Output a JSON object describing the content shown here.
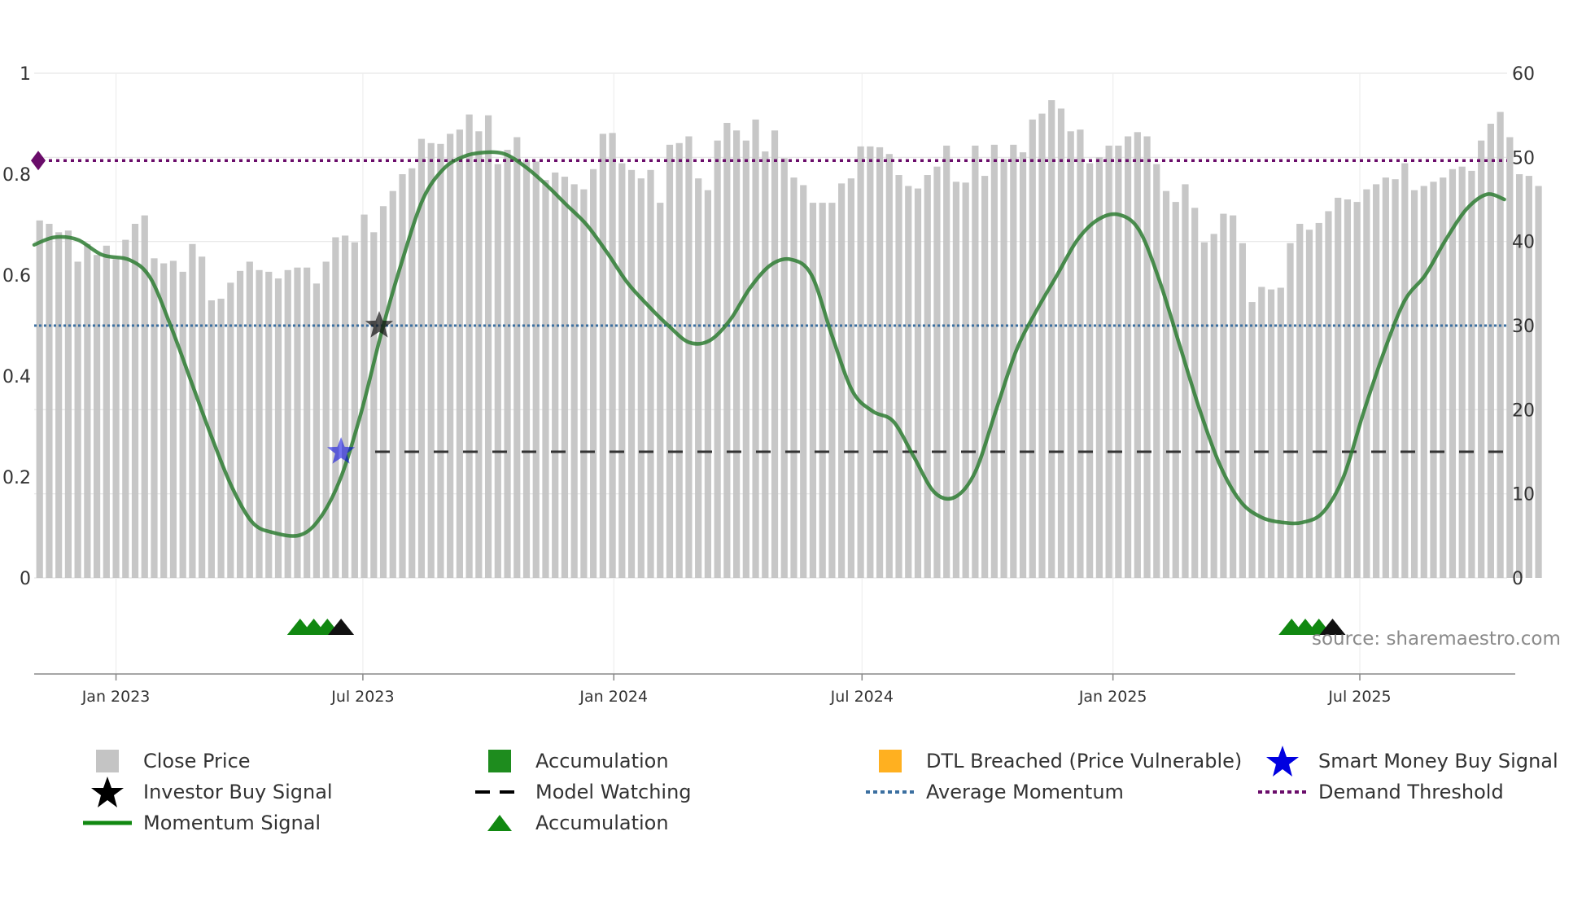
{
  "chart_data": {
    "type": "bar",
    "title": "",
    "source_note": "source: sharemaestro.com",
    "left_axis": {
      "ylim": [
        0,
        1
      ],
      "ticks": [
        "0",
        "0.2",
        "0.4",
        "0.6",
        "0.8",
        "1"
      ]
    },
    "right_axis": {
      "ylim": [
        0,
        60
      ],
      "ticks": [
        "0",
        "10",
        "20",
        "30",
        "40",
        "50",
        "60"
      ]
    },
    "x_axis": {
      "range_days": [
        -60,
        1020
      ],
      "ticks": [
        {
          "day": 0,
          "label": "Jan 2023"
        },
        {
          "day": 181,
          "label": "Jul 2023"
        },
        {
          "day": 365,
          "label": "Jan 2024"
        },
        {
          "day": 547,
          "label": "Jul 2024"
        },
        {
          "day": 731,
          "label": "Jan 2025"
        },
        {
          "day": 912,
          "label": "Jul 2025"
        }
      ]
    },
    "close_price": {
      "start_day": -56,
      "step_days": 7,
      "values": [
        42.5,
        42.1,
        41.1,
        41.3,
        37.6,
        39.7,
        38.4,
        39.5,
        37.9,
        40.2,
        42.1,
        43.1,
        38.0,
        37.4,
        37.7,
        36.4,
        39.7,
        38.2,
        33.0,
        33.2,
        35.1,
        36.5,
        37.6,
        36.6,
        36.4,
        35.6,
        36.6,
        36.9,
        36.9,
        35.0,
        37.6,
        40.5,
        40.7,
        39.9,
        43.2,
        41.1,
        44.2,
        46.0,
        48.0,
        48.7,
        52.2,
        51.7,
        51.6,
        52.8,
        53.3,
        55.1,
        53.1,
        55.0,
        49.2,
        50.9,
        52.4,
        49.7,
        49.5,
        47.3,
        48.2,
        47.7,
        46.8,
        46.2,
        48.6,
        52.8,
        52.9,
        49.3,
        48.5,
        47.5,
        48.5,
        44.6,
        51.5,
        51.7,
        52.5,
        47.5,
        46.1,
        52.0,
        54.1,
        53.2,
        52.0,
        54.5,
        50.7,
        53.2,
        49.9,
        47.6,
        46.7,
        44.6,
        44.6,
        44.6,
        46.9,
        47.5,
        51.3,
        51.3,
        51.2,
        50.4,
        47.9,
        46.6,
        46.3,
        47.9,
        48.9,
        51.4,
        47.1,
        47.0,
        51.4,
        47.8,
        51.5,
        49.8,
        51.5,
        50.6,
        54.5,
        55.2,
        56.8,
        55.8,
        53.1,
        53.3,
        49.3,
        50.0,
        51.4,
        51.4,
        52.5,
        53.0,
        52.5,
        49.2,
        46.0,
        44.7,
        46.8,
        44.0,
        39.9,
        40.9,
        43.3,
        43.1,
        39.8,
        32.8,
        34.6,
        34.3,
        34.5,
        39.8,
        42.1,
        41.4,
        42.2,
        43.6,
        45.2,
        45.0,
        44.7,
        46.2,
        46.8,
        47.6,
        47.4,
        49.3,
        46.1,
        46.6,
        47.1,
        47.6,
        48.6,
        48.9,
        48.4,
        52.0,
        54.0,
        55.4,
        52.4,
        48.0,
        47.8,
        46.6
      ],
      "category_codes": "GGGGGGGGGGGGGGGGGGGGGGGGGGGGGGGGGGGGGGGGGGGGGGGGGGGGGGGGGGGGGGGGGGGGGGGGGGGGGGGGGGGGGGGGGGGGGGGGGGGGGGGGGGGGGGGGGGGGGGGGGGGGGGGGGGGGGGGGGGGGGGGGGGGGGGGGGGGGGGGGGGGGGG",
      "categories_legend": {
        "G": "Close Price",
        "A": "Accumulation",
        "D": "DTL Breached (Price Vulnerable)"
      }
    },
    "momentum_signal": {
      "axis": "left",
      "points": [
        [
          -60,
          0.66
        ],
        [
          -45,
          0.675
        ],
        [
          -28,
          0.67
        ],
        [
          -10,
          0.64
        ],
        [
          10,
          0.63
        ],
        [
          25,
          0.595
        ],
        [
          40,
          0.5
        ],
        [
          55,
          0.39
        ],
        [
          70,
          0.28
        ],
        [
          85,
          0.18
        ],
        [
          100,
          0.11
        ],
        [
          115,
          0.09
        ],
        [
          135,
          0.085
        ],
        [
          150,
          0.12
        ],
        [
          165,
          0.2
        ],
        [
          180,
          0.33
        ],
        [
          195,
          0.49
        ],
        [
          210,
          0.63
        ],
        [
          225,
          0.75
        ],
        [
          240,
          0.81
        ],
        [
          255,
          0.835
        ],
        [
          270,
          0.843
        ],
        [
          285,
          0.84
        ],
        [
          300,
          0.815
        ],
        [
          315,
          0.78
        ],
        [
          330,
          0.74
        ],
        [
          345,
          0.7
        ],
        [
          360,
          0.645
        ],
        [
          375,
          0.585
        ],
        [
          390,
          0.54
        ],
        [
          405,
          0.5
        ],
        [
          420,
          0.467
        ],
        [
          435,
          0.47
        ],
        [
          450,
          0.51
        ],
        [
          465,
          0.575
        ],
        [
          480,
          0.62
        ],
        [
          495,
          0.631
        ],
        [
          510,
          0.6
        ],
        [
          525,
          0.48
        ],
        [
          540,
          0.37
        ],
        [
          555,
          0.33
        ],
        [
          570,
          0.31
        ],
        [
          585,
          0.24
        ],
        [
          600,
          0.17
        ],
        [
          615,
          0.16
        ],
        [
          630,
          0.21
        ],
        [
          645,
          0.33
        ],
        [
          660,
          0.45
        ],
        [
          675,
          0.53
        ],
        [
          690,
          0.6
        ],
        [
          705,
          0.67
        ],
        [
          720,
          0.71
        ],
        [
          735,
          0.72
        ],
        [
          750,
          0.69
        ],
        [
          765,
          0.59
        ],
        [
          780,
          0.46
        ],
        [
          795,
          0.33
        ],
        [
          810,
          0.22
        ],
        [
          825,
          0.15
        ],
        [
          840,
          0.12
        ],
        [
          855,
          0.11
        ],
        [
          870,
          0.11
        ],
        [
          885,
          0.13
        ],
        [
          900,
          0.2
        ],
        [
          915,
          0.33
        ],
        [
          930,
          0.45
        ],
        [
          945,
          0.55
        ],
        [
          960,
          0.6
        ],
        [
          975,
          0.67
        ],
        [
          990,
          0.73
        ],
        [
          1005,
          0.76
        ],
        [
          1018,
          0.75
        ]
      ]
    },
    "average_momentum": {
      "axis": "left",
      "value": 0.5
    },
    "demand_threshold": {
      "axis": "left",
      "value": 0.827
    },
    "model_watching": {
      "axis": "left",
      "value": 0.25,
      "start_day": 190,
      "end_day": 1018
    },
    "investor_buy_signal": {
      "day": 193,
      "value": 0.5
    },
    "smart_money_buy_signal": {
      "day": 165,
      "value": 0.25
    },
    "accumulation_markers": [
      {
        "day": 135,
        "color": "green"
      },
      {
        "day": 145,
        "color": "green"
      },
      {
        "day": 155,
        "color": "green"
      },
      {
        "day": 165,
        "color": "black"
      },
      {
        "day": 862,
        "color": "green"
      },
      {
        "day": 872,
        "color": "green"
      },
      {
        "day": 882,
        "color": "green"
      },
      {
        "day": 892,
        "color": "black"
      }
    ],
    "legend": [
      {
        "key": "close_price",
        "label": "Close Price"
      },
      {
        "key": "accumulation_bar",
        "label": "Accumulation"
      },
      {
        "key": "dtl",
        "label": "DTL Breached (Price Vulnerable)"
      },
      {
        "key": "smart_money",
        "label": "Smart Money Buy Signal"
      },
      {
        "key": "investor",
        "label": "Investor Buy Signal"
      },
      {
        "key": "watching",
        "label": "Model Watching"
      },
      {
        "key": "avg_momentum",
        "label": "Average Momentum"
      },
      {
        "key": "demand",
        "label": "Demand Threshold"
      },
      {
        "key": "momentum",
        "label": "Momentum Signal"
      },
      {
        "key": "accumulation_marker",
        "label": "Accumulation"
      }
    ],
    "colors": {
      "close_price": "#c4c4c4",
      "accumulation": "#1e8c1e",
      "dtl": "#fdd38c",
      "momentum": "#2e7d32",
      "average_momentum": "#3b6fa0",
      "demand_threshold": "#6a0d6a",
      "model_watching": "#333333",
      "smart_money": "#0000e0",
      "investor": "#111111",
      "grid": "#e6e6e6"
    }
  }
}
